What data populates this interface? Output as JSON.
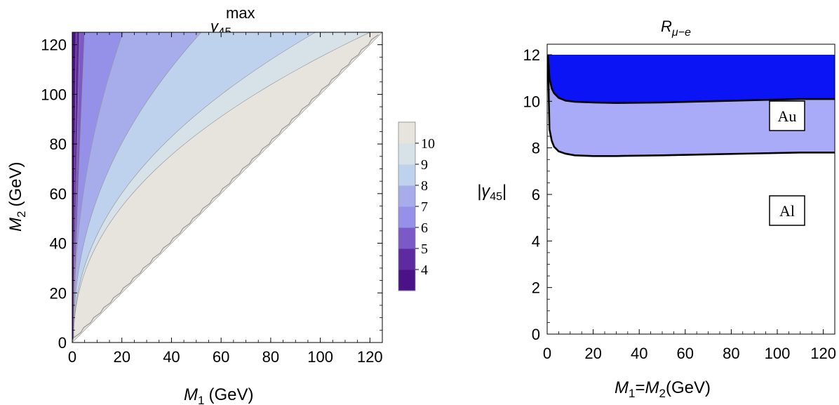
{
  "chart_data": [
    {
      "type": "contour",
      "title": "γ",
      "title_sub": "45",
      "title_sup": "max",
      "xlabel_var": "M",
      "xlabel_sub": "1",
      "xlabel_unit": "(GeV)",
      "ylabel_var": "M",
      "ylabel_sub": "2",
      "ylabel_unit": "(GeV)",
      "xlim": [
        0,
        125
      ],
      "ylim": [
        0,
        125
      ],
      "xticks": [
        "0",
        "20",
        "40",
        "60",
        "80",
        "100",
        "120"
      ],
      "yticks": [
        "0",
        "20",
        "40",
        "60",
        "80",
        "100",
        "120"
      ],
      "region": "M2 > M1",
      "contour_levels": [
        3,
        4,
        5,
        6,
        7,
        8,
        9,
        10,
        11
      ],
      "contour_boundary_M1_at_top": [
        1.5,
        3,
        5,
        20.5,
        52,
        98,
        120
      ],
      "colorbar": {
        "labels": [
          "4",
          "5",
          "6",
          "7",
          "8",
          "9",
          "10"
        ],
        "colors": [
          "#4b1288",
          "#5e2aa0",
          "#7b5ac8",
          "#9590e8",
          "#a7acea",
          "#bed2ee",
          "#d6e2e8",
          "#e6e4dc"
        ]
      }
    },
    {
      "type": "area",
      "title": "R",
      "title_sub": "μ−e",
      "xlabel": "M₁=M₂(GeV)",
      "xlabel_parts": [
        "M",
        "1",
        "=",
        "M",
        "2",
        "(GeV)"
      ],
      "ylabel": "|γ45|",
      "ylabel_parts": [
        "|γ",
        "45",
        "|"
      ],
      "xlim": [
        0,
        125
      ],
      "ylim": [
        0,
        12
      ],
      "xticks": [
        "0",
        "20",
        "40",
        "60",
        "80",
        "100",
        "120"
      ],
      "yticks": [
        "0",
        "2",
        "4",
        "6",
        "8",
        "10",
        "12"
      ],
      "series": [
        {
          "name": "Au",
          "color": "#0a14f5",
          "x": [
            0.3,
            1,
            2,
            3,
            5,
            8,
            12,
            20,
            30,
            50,
            70,
            90,
            110,
            125
          ],
          "y": [
            12,
            11.0,
            10.55,
            10.35,
            10.15,
            10.03,
            9.98,
            9.95,
            9.93,
            9.95,
            10.0,
            10.05,
            10.1,
            10.1
          ]
        },
        {
          "name": "Al",
          "color": "#a9abf8",
          "x": [
            0.3,
            1,
            2,
            3,
            5,
            8,
            12,
            20,
            30,
            50,
            70,
            90,
            110,
            125
          ],
          "y": [
            12,
            8.8,
            8.3,
            8.05,
            7.85,
            7.75,
            7.68,
            7.65,
            7.65,
            7.68,
            7.72,
            7.76,
            7.8,
            7.8
          ]
        }
      ]
    }
  ]
}
